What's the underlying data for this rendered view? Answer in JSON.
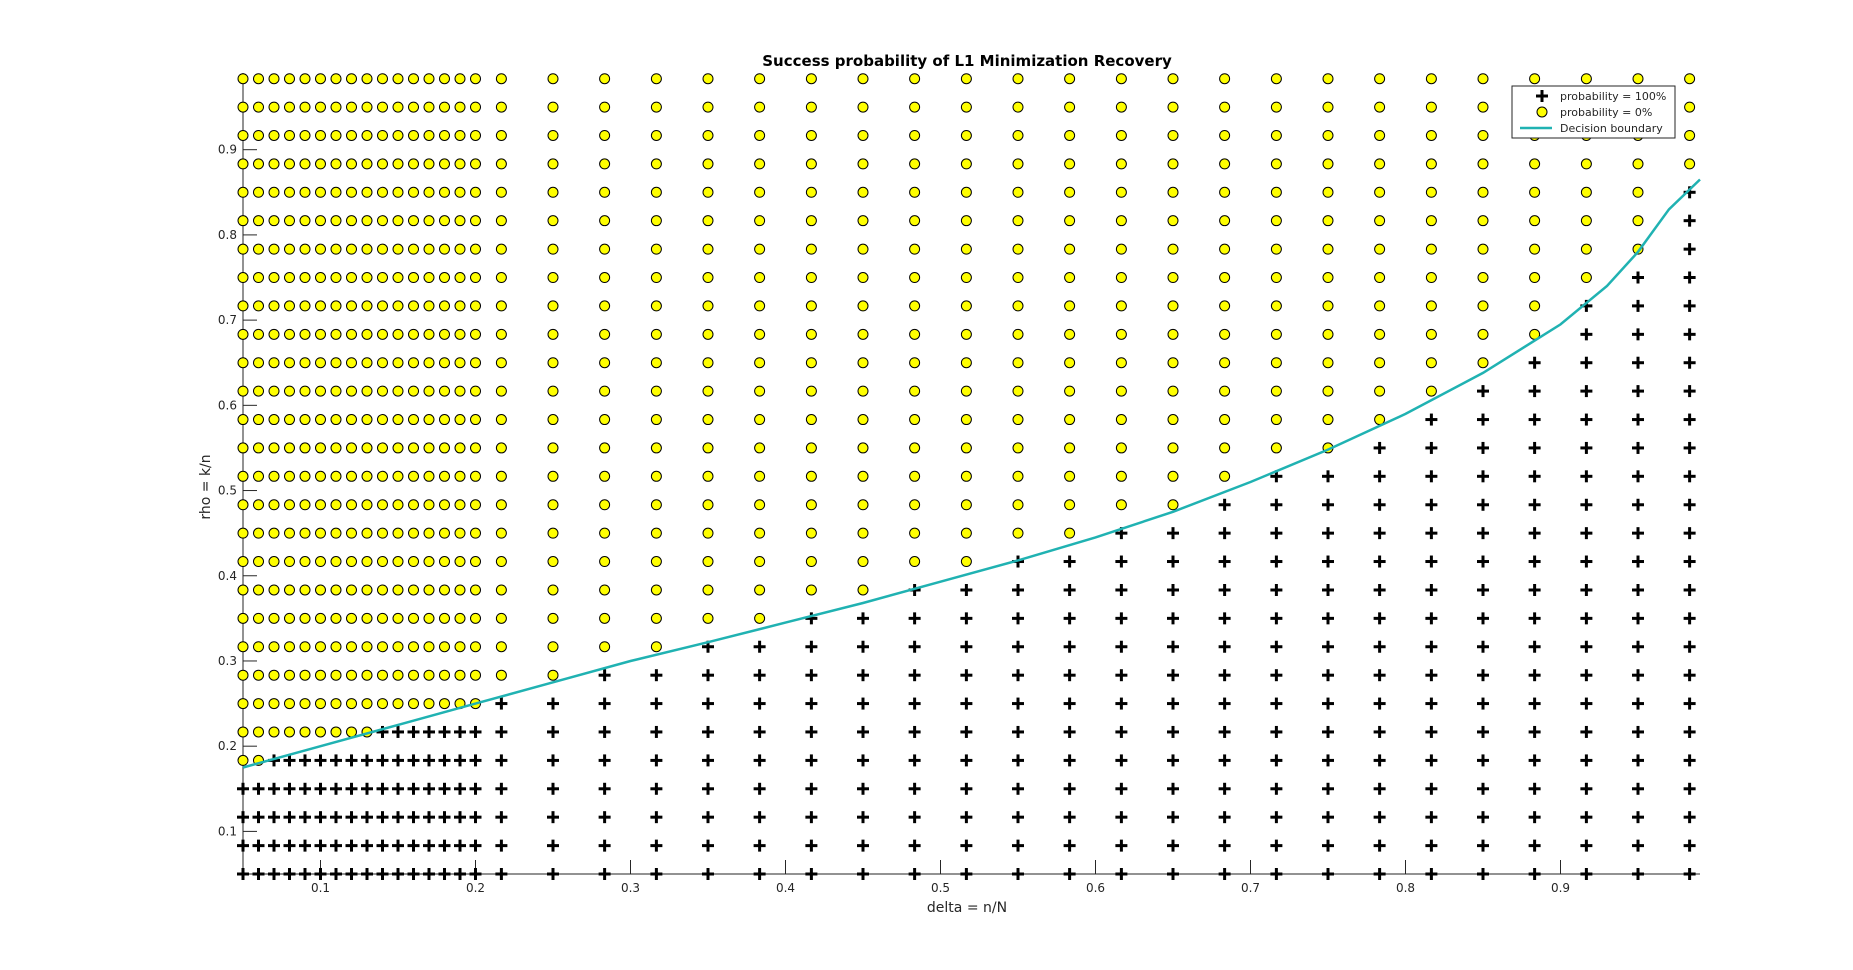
{
  "chart_data": {
    "type": "scatter",
    "title": "Success probability of L1 Minimization Recovery",
    "xlabel": "delta = n/N",
    "ylabel": "rho = k/n",
    "xlim": [
      0.05,
      0.99
    ],
    "ylim": [
      0.05,
      0.99
    ],
    "x_ticks": [
      0.1,
      0.2,
      0.3,
      0.4,
      0.5,
      0.6,
      0.7,
      0.8,
      0.9
    ],
    "x_tick_labels": [
      "0.1",
      "0.2",
      "0.3",
      "0.4",
      "0.5",
      "0.6",
      "0.7",
      "0.8",
      "0.9"
    ],
    "y_ticks": [
      0.1,
      0.2,
      0.3,
      0.4,
      0.5,
      0.6,
      0.7,
      0.8,
      0.9
    ],
    "y_tick_labels": [
      "0.1",
      "0.2",
      "0.3",
      "0.4",
      "0.5",
      "0.6",
      "0.7",
      "0.8",
      "0.9"
    ],
    "grid": false,
    "legend_position": "top-right",
    "delta_values": [
      0.05,
      0.06,
      0.07,
      0.08,
      0.09,
      0.1,
      0.11,
      0.12,
      0.13,
      0.14,
      0.15,
      0.16,
      0.17,
      0.18,
      0.19,
      0.2,
      0.2167,
      0.25,
      0.2833,
      0.3167,
      0.35,
      0.3833,
      0.4167,
      0.45,
      0.4833,
      0.5167,
      0.55,
      0.5833,
      0.6167,
      0.65,
      0.6833,
      0.7167,
      0.75,
      0.7833,
      0.8167,
      0.85,
      0.8833,
      0.9167,
      0.95,
      0.9833
    ],
    "rho_values": [
      0.05,
      0.0833,
      0.1167,
      0.15,
      0.1833,
      0.2167,
      0.25,
      0.2833,
      0.3167,
      0.35,
      0.3833,
      0.4167,
      0.45,
      0.4833,
      0.5167,
      0.55,
      0.5833,
      0.6167,
      0.65,
      0.6833,
      0.7167,
      0.75,
      0.7833,
      0.8167,
      0.85,
      0.8833,
      0.9167,
      0.95,
      0.9833
    ],
    "series": [
      {
        "name": "probability = 100%",
        "marker": "plus",
        "color": "#000000",
        "rule": "rho below the decision boundary"
      },
      {
        "name": "probability = 0%",
        "marker": "circle",
        "color": "#ffff00",
        "edge_color": "#000000",
        "rule": "rho above the decision boundary"
      },
      {
        "name": "Decision boundary",
        "marker": "line",
        "color": "#20b2b2",
        "x": [
          0.05,
          0.1,
          0.15,
          0.2,
          0.25,
          0.3,
          0.35,
          0.4,
          0.45,
          0.5,
          0.55,
          0.6,
          0.65,
          0.7,
          0.75,
          0.8,
          0.85,
          0.9,
          0.93,
          0.95,
          0.97,
          0.99
        ],
        "y": [
          0.175,
          0.2,
          0.225,
          0.25,
          0.275,
          0.3,
          0.322,
          0.345,
          0.368,
          0.393,
          0.418,
          0.445,
          0.475,
          0.51,
          0.548,
          0.59,
          0.638,
          0.695,
          0.74,
          0.78,
          0.83,
          0.865
        ]
      }
    ]
  }
}
